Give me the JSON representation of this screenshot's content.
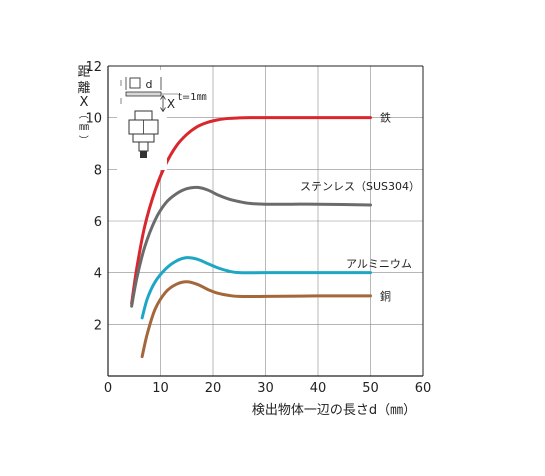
{
  "chart_data": {
    "type": "line",
    "xlabel": "検出物体一辺の長さd（㎜）",
    "ylabel_chars": [
      "距",
      "離",
      "X",
      "（",
      "㎜",
      "）"
    ],
    "xlim": [
      0,
      60
    ],
    "ylim": [
      0,
      12
    ],
    "x_ticks": [
      "0",
      "10",
      "20",
      "30",
      "40",
      "50",
      "60"
    ],
    "y_ticks": [
      "2",
      "4",
      "6",
      "8",
      "10",
      "12"
    ],
    "grid": true,
    "series": [
      {
        "name": "鉄",
        "color": "#d9272e",
        "x": [
          4.5,
          5.5,
          7,
          9,
          11,
          13,
          15,
          17,
          19,
          21,
          23,
          25,
          27,
          30,
          40,
          50
        ],
        "y": [
          2.8,
          4.2,
          5.8,
          7.2,
          8.2,
          8.9,
          9.35,
          9.65,
          9.82,
          9.92,
          9.97,
          9.99,
          10.0,
          10.0,
          10.0,
          10.0
        ]
      },
      {
        "name": "ステンレス（SUS304）",
        "color": "#6b6b6b",
        "x": [
          4.5,
          5.5,
          7,
          9,
          11,
          13,
          15,
          17,
          19,
          21,
          23,
          25,
          27,
          30,
          35,
          40,
          50
        ],
        "y": [
          2.7,
          3.8,
          5.0,
          6.05,
          6.7,
          7.05,
          7.25,
          7.3,
          7.2,
          7.0,
          6.85,
          6.75,
          6.68,
          6.65,
          6.65,
          6.65,
          6.62
        ]
      },
      {
        "name": "アルミニウム",
        "color": "#1ea7c5",
        "x": [
          6.5,
          7.5,
          9,
          11,
          13,
          15,
          17,
          19,
          21,
          23,
          25,
          30,
          40,
          50
        ],
        "y": [
          2.25,
          3.0,
          3.65,
          4.15,
          4.45,
          4.58,
          4.52,
          4.35,
          4.18,
          4.06,
          4.0,
          4.0,
          4.0,
          4.0
        ]
      },
      {
        "name": "銅",
        "color": "#a4663b",
        "x": [
          6.5,
          7.5,
          9,
          11,
          13,
          15,
          17,
          19,
          21,
          23,
          25,
          30,
          40,
          50
        ],
        "y": [
          0.75,
          1.65,
          2.6,
          3.25,
          3.55,
          3.65,
          3.55,
          3.35,
          3.2,
          3.12,
          3.08,
          3.08,
          3.1,
          3.1
        ]
      }
    ],
    "inset": {
      "d_label": "d",
      "x_label": "X",
      "t_label": "t=1㎜"
    }
  }
}
